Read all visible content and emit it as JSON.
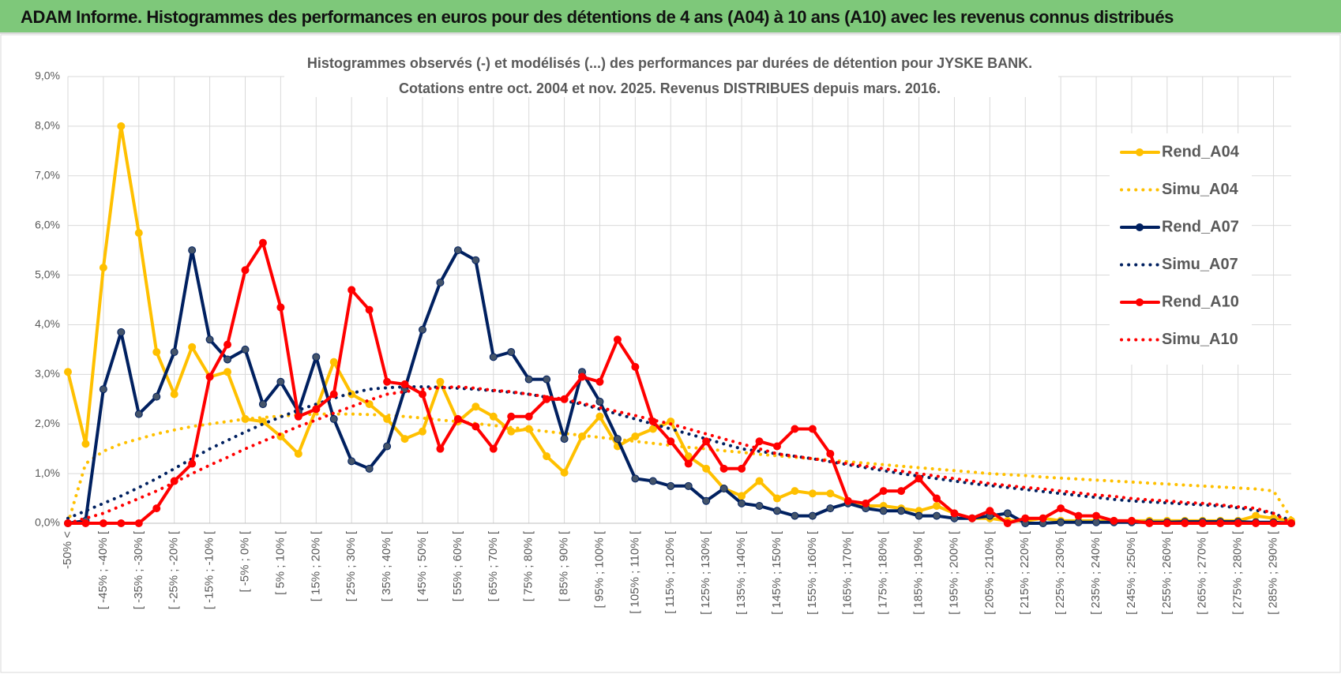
{
  "header": {
    "title": "ADAM Informe. Histogrammes des performances en euros pour des détentions de 4 ans (A04) à 10 ans (A10) avec les revenus connus distribués"
  },
  "chart_data": {
    "type": "line",
    "title": "Histogrammes observés (-) et modélisés (...) des performances par durées de détention pour JYSKE BANK.",
    "subtitle": "Cotations entre oct. 2004 et nov. 2025. Revenus DISTRIBUES depuis mars. 2016.",
    "categories": [
      "-50% <",
      null,
      "[ -45% ; -40% [",
      null,
      "[ -35% ; -30% [",
      null,
      "[ -25% ; -20% [",
      null,
      "[ -15% ; -10% [",
      null,
      "[ -5% ; 0% [",
      null,
      "[ 5% ; 10% [",
      null,
      "[ 15% ; 20% [",
      null,
      "[ 25% ; 30% [",
      null,
      "[ 35% ; 40% [",
      null,
      "[ 45% ; 50% [",
      null,
      "[ 55% ; 60% [",
      null,
      "[ 65% ; 70% [",
      null,
      "[ 75% ; 80% [",
      null,
      "[ 85% ; 90% [",
      null,
      "[ 95% ; 100% [",
      null,
      "[ 105% ; 110% [",
      null,
      "[ 115% ; 120% [",
      null,
      "[ 125% ; 130% [",
      null,
      "[ 135% ; 140% [",
      null,
      "[ 145% ; 150% [",
      null,
      "[ 155% ; 160% [",
      null,
      "[ 165% ; 170% [",
      null,
      "[ 175% ; 180% [",
      null,
      "[ 185% ; 190% [",
      null,
      "[ 195% ; 200% [",
      null,
      "[ 205% ; 210% [",
      null,
      "[ 215% ; 220% [",
      null,
      "[ 225% ; 230% [",
      null,
      "[ 235% ; 240% [",
      null,
      "[ 245% ; 250% [",
      null,
      "[ 255% ; 260% [",
      null,
      "[ 265% ; 270% [",
      null,
      "[ 275% ; 280% [",
      null,
      "[ 285% ; 290% [",
      null
    ],
    "ylim": [
      0,
      9
    ],
    "yticks": [
      {
        "value": 0,
        "label": "0,0%"
      },
      {
        "value": 1,
        "label": "1,0%"
      },
      {
        "value": 2,
        "label": "2,0%"
      },
      {
        "value": 3,
        "label": "3,0%"
      },
      {
        "value": 4,
        "label": "4,0%"
      },
      {
        "value": 5,
        "label": "5,0%"
      },
      {
        "value": 6,
        "label": "6,0%"
      },
      {
        "value": 7,
        "label": "7,0%"
      },
      {
        "value": 8,
        "label": "8,0%"
      },
      {
        "value": 9,
        "label": "9,0%"
      }
    ],
    "grid": true,
    "legend": "right",
    "series": [
      {
        "name": "Rend_A04",
        "color": "#FFC000",
        "style": "solid",
        "values": [
          3.05,
          1.6,
          5.15,
          8.0,
          5.85,
          3.45,
          2.6,
          3.55,
          2.95,
          3.05,
          2.1,
          2.05,
          1.75,
          1.4,
          2.3,
          3.25,
          2.6,
          2.4,
          2.1,
          1.7,
          1.85,
          2.85,
          2.05,
          2.35,
          2.15,
          1.85,
          1.9,
          1.35,
          1.02,
          1.75,
          2.15,
          1.55,
          1.75,
          1.9,
          2.05,
          1.35,
          1.1,
          0.7,
          0.55,
          0.85,
          0.5,
          0.65,
          0.6,
          0.6,
          0.45,
          0.35,
          0.35,
          0.3,
          0.25,
          0.35,
          0.2,
          0.1,
          0.1,
          0.05,
          0.05,
          0.1,
          0.05,
          0.05,
          0.05,
          0.05,
          0.05,
          0.05,
          0.05,
          0.05,
          0.05,
          0.05,
          0.05,
          0.15,
          0.1,
          0.05
        ]
      },
      {
        "name": "Simu_A04",
        "color": "#FFC000",
        "style": "dotted",
        "values": [
          0,
          1.2,
          1.45,
          1.6,
          1.7,
          1.8,
          1.88,
          1.95,
          2.0,
          2.05,
          2.1,
          2.13,
          2.16,
          2.18,
          2.2,
          2.2,
          2.2,
          2.19,
          2.18,
          2.15,
          2.12,
          2.08,
          2.05,
          2.01,
          1.97,
          1.93,
          1.89,
          1.85,
          1.81,
          1.77,
          1.73,
          1.69,
          1.65,
          1.61,
          1.57,
          1.53,
          1.5,
          1.46,
          1.43,
          1.39,
          1.36,
          1.33,
          1.3,
          1.27,
          1.24,
          1.21,
          1.18,
          1.15,
          1.12,
          1.09,
          1.06,
          1.03,
          1.0,
          0.98,
          0.96,
          0.93,
          0.91,
          0.89,
          0.87,
          0.85,
          0.83,
          0.81,
          0.79,
          0.77,
          0.75,
          0.73,
          0.71,
          0.69,
          0.65,
          0.1
        ]
      },
      {
        "name": "Rend_A07",
        "color": "#002060",
        "style": "solid",
        "values": [
          0,
          0.05,
          2.7,
          3.85,
          2.2,
          2.55,
          3.45,
          5.5,
          3.7,
          3.3,
          3.5,
          2.4,
          2.85,
          2.25,
          3.35,
          2.1,
          1.25,
          1.1,
          1.55,
          2.7,
          3.9,
          4.85,
          5.5,
          5.3,
          3.35,
          3.45,
          2.9,
          2.9,
          1.7,
          3.05,
          2.45,
          1.7,
          0.9,
          0.85,
          0.75,
          0.75,
          0.45,
          0.7,
          0.4,
          0.35,
          0.25,
          0.15,
          0.15,
          0.3,
          0.4,
          0.3,
          0.25,
          0.25,
          0.15,
          0.15,
          0.1,
          0.1,
          0.15,
          0.2,
          0,
          0,
          0.02,
          0.02,
          0.02,
          0.02,
          0.02,
          0.02,
          0.02,
          0.03,
          0.03,
          0.03,
          0.03,
          0.02,
          0.02,
          0
        ]
      },
      {
        "name": "Simu_A07",
        "color": "#002060",
        "style": "dotted",
        "values": [
          0.1,
          0.25,
          0.4,
          0.55,
          0.72,
          0.9,
          1.1,
          1.3,
          1.5,
          1.67,
          1.84,
          2.0,
          2.14,
          2.28,
          2.4,
          2.52,
          2.62,
          2.7,
          2.73,
          2.75,
          2.75,
          2.74,
          2.72,
          2.7,
          2.67,
          2.64,
          2.6,
          2.54,
          2.47,
          2.4,
          2.3,
          2.2,
          2.1,
          2.0,
          1.9,
          1.8,
          1.7,
          1.6,
          1.5,
          1.45,
          1.4,
          1.35,
          1.3,
          1.24,
          1.18,
          1.12,
          1.06,
          1.0,
          0.95,
          0.9,
          0.85,
          0.8,
          0.76,
          0.72,
          0.68,
          0.64,
          0.6,
          0.56,
          0.52,
          0.48,
          0.45,
          0.43,
          0.41,
          0.39,
          0.37,
          0.35,
          0.31,
          0.26,
          0.2,
          0.05
        ]
      },
      {
        "name": "Rend_A10",
        "color": "#FF0000",
        "style": "solid",
        "values": [
          0,
          0,
          0,
          0,
          0,
          0.3,
          0.85,
          1.2,
          2.95,
          3.6,
          5.1,
          5.65,
          4.35,
          2.15,
          2.3,
          2.6,
          4.7,
          4.3,
          2.85,
          2.8,
          2.6,
          1.5,
          2.1,
          1.95,
          1.5,
          2.15,
          2.15,
          2.5,
          2.5,
          2.95,
          2.85,
          3.7,
          3.15,
          2.05,
          1.65,
          1.2,
          1.65,
          1.1,
          1.1,
          1.65,
          1.55,
          1.9,
          1.9,
          1.4,
          0.45,
          0.4,
          0.65,
          0.65,
          0.9,
          0.5,
          0.2,
          0.1,
          0.25,
          0,
          0.1,
          0.1,
          0.3,
          0.15,
          0.15,
          0.05,
          0.05,
          0,
          0,
          0,
          0,
          0,
          0,
          0,
          0,
          0
        ]
      },
      {
        "name": "Simu_A10",
        "color": "#FF0000",
        "style": "dotted",
        "values": [
          0,
          0.1,
          0.2,
          0.35,
          0.5,
          0.65,
          0.82,
          1.0,
          1.17,
          1.33,
          1.5,
          1.65,
          1.8,
          1.95,
          2.08,
          2.22,
          2.35,
          2.48,
          2.6,
          2.65,
          2.7,
          2.73,
          2.75,
          2.72,
          2.68,
          2.65,
          2.6,
          2.55,
          2.5,
          2.42,
          2.33,
          2.25,
          2.17,
          2.08,
          2.0,
          1.9,
          1.8,
          1.7,
          1.6,
          1.5,
          1.4,
          1.35,
          1.3,
          1.25,
          1.2,
          1.15,
          1.1,
          1.05,
          1.0,
          0.95,
          0.9,
          0.85,
          0.8,
          0.76,
          0.72,
          0.69,
          0.65,
          0.61,
          0.57,
          0.54,
          0.5,
          0.47,
          0.45,
          0.42,
          0.4,
          0.37,
          0.33,
          0.3,
          0.2,
          0
        ]
      }
    ]
  }
}
